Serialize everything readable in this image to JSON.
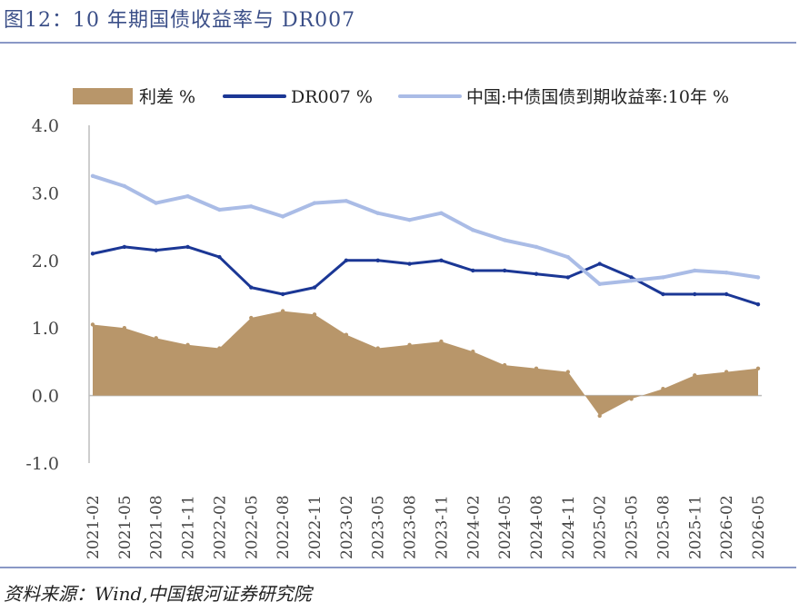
{
  "title": "图12：10 年期国债收益率与 DR007",
  "source": "资料来源：Wind,中国银河证券研究院",
  "chart_data": {
    "type": "line",
    "title": "",
    "xlabel": "",
    "ylabel": "",
    "ylim": [
      -1.0,
      4.0
    ],
    "yticks": [
      "4.0",
      "3.0",
      "2.0",
      "1.0",
      "0.0",
      "-1.0"
    ],
    "xticks": [
      "2021-02",
      "2021-05",
      "2021-08",
      "2021-11",
      "2022-02",
      "2022-05",
      "2022-08",
      "2022-11",
      "2023-02",
      "2023-05",
      "2023-08",
      "2023-11",
      "2024-02",
      "2024-05",
      "2024-08",
      "2024-11",
      "2025-02",
      "2025-05",
      "2025-08",
      "2025-11",
      "2026-02",
      "2026-05"
    ],
    "grid": false,
    "legend": "top",
    "series": [
      {
        "name": "利差 %",
        "kind": "area",
        "color": "#b8966a",
        "x": [
          "2021-02",
          "2021-05",
          "2021-08",
          "2021-11",
          "2022-02",
          "2022-05",
          "2022-08",
          "2022-11",
          "2023-02",
          "2023-05",
          "2023-08",
          "2023-11",
          "2024-02",
          "2024-05",
          "2024-08",
          "2024-11",
          "2025-02",
          "2025-05",
          "2025-08",
          "2025-11",
          "2026-02",
          "2026-05"
        ],
        "values": [
          1.05,
          1.0,
          0.85,
          0.75,
          0.7,
          1.15,
          1.25,
          1.2,
          0.9,
          0.7,
          0.75,
          0.8,
          0.65,
          0.45,
          0.4,
          0.35,
          -0.3,
          -0.05,
          0.1,
          0.3,
          0.35,
          0.4
        ]
      },
      {
        "name": "DR007 %",
        "kind": "line",
        "color": "#1b3795",
        "x": [
          "2021-02",
          "2021-05",
          "2021-08",
          "2021-11",
          "2022-02",
          "2022-05",
          "2022-08",
          "2022-11",
          "2023-02",
          "2023-05",
          "2023-08",
          "2023-11",
          "2024-02",
          "2024-05",
          "2024-08",
          "2024-11",
          "2025-02",
          "2025-05",
          "2025-08",
          "2025-11",
          "2026-02",
          "2026-05"
        ],
        "values": [
          2.1,
          2.2,
          2.15,
          2.2,
          2.05,
          1.6,
          1.5,
          1.6,
          2.0,
          2.0,
          1.95,
          2.0,
          1.85,
          1.85,
          1.8,
          1.75,
          1.95,
          1.75,
          1.5,
          1.5,
          1.5,
          1.35
        ]
      },
      {
        "name": "中国:中债国债到期收益率:10年 %",
        "kind": "line",
        "color": "#aabce6",
        "x": [
          "2021-02",
          "2021-05",
          "2021-08",
          "2021-11",
          "2022-02",
          "2022-05",
          "2022-08",
          "2022-11",
          "2023-02",
          "2023-05",
          "2023-08",
          "2023-11",
          "2024-02",
          "2024-05",
          "2024-08",
          "2024-11",
          "2025-02",
          "2025-05",
          "2025-08",
          "2025-11",
          "2026-02",
          "2026-05"
        ],
        "values": [
          3.25,
          3.1,
          2.85,
          2.95,
          2.75,
          2.8,
          2.65,
          2.85,
          2.88,
          2.7,
          2.6,
          2.7,
          2.45,
          2.3,
          2.2,
          2.05,
          1.65,
          1.7,
          1.75,
          1.85,
          1.82,
          1.75
        ]
      }
    ]
  }
}
